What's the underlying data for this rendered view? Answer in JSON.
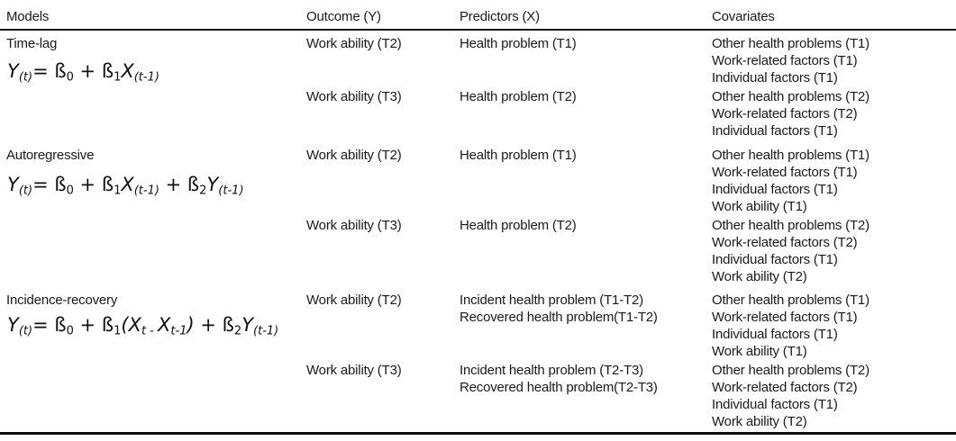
{
  "table": {
    "header": {
      "models": "Models",
      "outcome": "Outcome (Y)",
      "predictors": "Predictors (X)",
      "covariates": "Covariates"
    },
    "sections": [
      {
        "label": "Time-lag",
        "formula_text": "Y(t)= ß0 + ß1X(t-1)",
        "formula": [
          {
            "t": "Y",
            "i": true
          },
          {
            "t": "(t)",
            "sub": true,
            "i": true
          },
          {
            "t": "= ß"
          },
          {
            "t": "0",
            "sub": true
          },
          {
            "t": " + ß"
          },
          {
            "t": "1",
            "sub": true
          },
          {
            "t": "X",
            "i": true
          },
          {
            "t": "(t-1)",
            "sub": true,
            "i": true
          }
        ],
        "rows": [
          {
            "outcome": "Work ability (T2)",
            "predictors": [
              "Health problem (T1)"
            ],
            "covariates": [
              "Other health problems (T1)",
              "Work-related factors (T1)",
              "Individual factors (T1)"
            ]
          },
          {
            "outcome": "Work ability (T3)",
            "predictors": [
              "Health problem (T2)"
            ],
            "covariates": [
              "Other health problems (T2)",
              "Work-related factors (T2)",
              "Individual factors (T1)"
            ]
          }
        ]
      },
      {
        "label": "Autoregressive",
        "formula_text": "Y(t)= ß0 + ß1X(t-1) + ß2Y(t-1)",
        "formula": [
          {
            "t": "Y",
            "i": true
          },
          {
            "t": "(t)",
            "sub": true,
            "i": true
          },
          {
            "t": "= ß"
          },
          {
            "t": "0",
            "sub": true
          },
          {
            "t": " + ß"
          },
          {
            "t": "1",
            "sub": true
          },
          {
            "t": "X",
            "i": true
          },
          {
            "t": "(t-1)",
            "sub": true,
            "i": true
          },
          {
            "t": " + ß"
          },
          {
            "t": "2",
            "sub": true
          },
          {
            "t": "Y",
            "i": true
          },
          {
            "t": "(t-1)",
            "sub": true,
            "i": true
          }
        ],
        "rows": [
          {
            "outcome": "Work ability (T2)",
            "predictors": [
              "Health problem (T1)"
            ],
            "covariates": [
              "Other health problems (T1)",
              "Work-related factors (T1)",
              "Individual factors (T1)",
              "Work ability (T1)"
            ]
          },
          {
            "outcome": "Work ability (T3)",
            "predictors": [
              "Health problem (T2)"
            ],
            "covariates": [
              "Other health problems (T2)",
              "Work-related factors (T2)",
              "Individual factors (T1)",
              "Work ability (T2)"
            ]
          }
        ]
      },
      {
        "label": "Incidence-recovery",
        "formula_text": "Y(t)= ß0 + ß1(Xt - Xt-1) + ß2Y(t-1)",
        "formula": [
          {
            "t": "Y",
            "i": true
          },
          {
            "t": "(t)",
            "sub": true,
            "i": true
          },
          {
            "t": "= ß"
          },
          {
            "t": "0",
            "sub": true
          },
          {
            "t": " + ß"
          },
          {
            "t": "1",
            "sub": true
          },
          {
            "t": "(",
            "i": true
          },
          {
            "t": "X",
            "i": true
          },
          {
            "t": "t",
            "sub": true,
            "i": true
          },
          {
            "t": " - ",
            "sub": true
          },
          {
            "t": "X",
            "i": true
          },
          {
            "t": "t-1",
            "sub": true,
            "i": true
          },
          {
            "t": ")",
            "i": true
          },
          {
            "t": " + ß"
          },
          {
            "t": "2",
            "sub": true
          },
          {
            "t": "Y",
            "i": true
          },
          {
            "t": "(t-1)",
            "sub": true,
            "i": true
          }
        ],
        "rows": [
          {
            "outcome": "Work ability (T2)",
            "predictors": [
              "Incident health problem (T1-T2)",
              "Recovered health problem(T1-T2)"
            ],
            "covariates": [
              "Other health problems (T1)",
              "Work-related factors (T1)",
              "Individual factors (T1)",
              "Work ability (T1)"
            ]
          },
          {
            "outcome": "Work ability (T3)",
            "predictors": [
              "Incident health problem (T2-T3)",
              "Recovered health problem(T2-T3)"
            ],
            "covariates": [
              "Other health problems (T2)",
              "Work-related factors (T2)",
              "Individual factors (T1)",
              "Work ability (T2)"
            ]
          }
        ]
      }
    ],
    "colors": {
      "text": "#1b1b1b",
      "rule": "#0d0d0d",
      "background": "#ffffff"
    }
  }
}
